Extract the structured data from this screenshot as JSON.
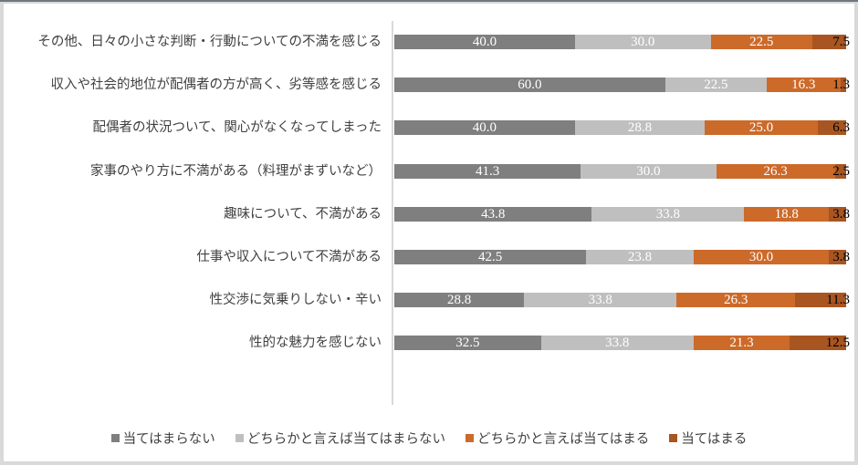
{
  "chart_data": {
    "type": "bar",
    "orientation": "horizontal",
    "stacked": true,
    "percent_stacked": true,
    "title": "",
    "xlabel": "",
    "ylabel": "",
    "xlim": [
      0,
      100
    ],
    "grid": false,
    "legend_position": "bottom",
    "categories": [
      "その他、日々の小さな判断・行動についての不満を感じる",
      "収入や社会的地位が配偶者の方が高く、劣等感を感じる",
      "配偶者の状況ついて、関心がなくなってしまった",
      "家事のやり方に不満がある（料理がまずいなど）",
      "趣味について、不満がある",
      "仕事や収入について不満がある",
      "性交渉に気乗りしない・辛い",
      "性的な魅力を感じない"
    ],
    "series": [
      {
        "name": "当てはまらない",
        "color": "#7f7f7f",
        "values": [
          40.0,
          60.0,
          40.0,
          41.3,
          43.8,
          42.5,
          28.8,
          32.5
        ]
      },
      {
        "name": "どちらかと言えば当てはまらない",
        "color": "#bfbfbf",
        "values": [
          30.0,
          22.5,
          28.8,
          30.0,
          33.8,
          23.8,
          33.8,
          33.8
        ]
      },
      {
        "name": "どちらかと言えば当てはまる",
        "color": "#cc6a2a",
        "values": [
          22.5,
          16.3,
          25.0,
          26.3,
          18.8,
          30.0,
          26.3,
          21.3
        ]
      },
      {
        "name": "当てはまる",
        "color": "#a85522",
        "values": [
          7.5,
          1.3,
          6.3,
          2.5,
          3.8,
          3.8,
          11.3,
          12.5
        ]
      }
    ]
  },
  "rows": [
    {
      "label": "その他、日々の小さな判断・行動についての不満を感じる",
      "v": [
        "40.0",
        "30.0",
        "22.5",
        "7.5"
      ],
      "w": [
        40.0,
        30.0,
        22.5,
        7.5
      ]
    },
    {
      "label": "収入や社会的地位が配偶者の方が高く、劣等感を感じる",
      "v": [
        "60.0",
        "22.5",
        "16.3",
        "1.3"
      ],
      "w": [
        60.0,
        22.5,
        16.3,
        1.3
      ]
    },
    {
      "label": "配偶者の状況ついて、関心がなくなってしまった",
      "v": [
        "40.0",
        "28.8",
        "25.0",
        "6.3"
      ],
      "w": [
        40.0,
        28.8,
        25.0,
        6.3
      ]
    },
    {
      "label": "家事のやり方に不満がある（料理がまずいなど）",
      "v": [
        "41.3",
        "30.0",
        "26.3",
        "2.5"
      ],
      "w": [
        41.3,
        30.0,
        26.3,
        2.5
      ]
    },
    {
      "label": "趣味について、不満がある",
      "v": [
        "43.8",
        "33.8",
        "18.8",
        "3.8"
      ],
      "w": [
        43.8,
        33.8,
        18.8,
        3.8
      ]
    },
    {
      "label": "仕事や収入について不満がある",
      "v": [
        "42.5",
        "23.8",
        "30.0",
        "3.8"
      ],
      "w": [
        42.5,
        23.8,
        30.0,
        3.8
      ]
    },
    {
      "label": "性交渉に気乗りしない・辛い",
      "v": [
        "28.8",
        "33.8",
        "26.3",
        "11.3"
      ],
      "w": [
        28.8,
        33.8,
        26.3,
        11.3
      ]
    },
    {
      "label": "性的な魅力を感じない",
      "v": [
        "32.5",
        "33.8",
        "21.3",
        "12.5"
      ],
      "w": [
        32.5,
        33.8,
        21.3,
        12.5
      ]
    }
  ],
  "legend": [
    {
      "label": "当てはまらない",
      "color": "#7f7f7f"
    },
    {
      "label": "どちらかと言えば当てはまらない",
      "color": "#bfbfbf"
    },
    {
      "label": "どちらかと言えば当てはまる",
      "color": "#cc6a2a"
    },
    {
      "label": "当てはまる",
      "color": "#a85522"
    }
  ]
}
